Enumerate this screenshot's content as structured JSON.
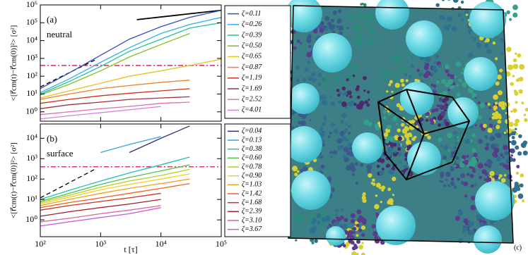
{
  "chart_data": [
    {
      "type": "line",
      "log_x": true,
      "log_y": true,
      "y_label": "<[r⃗cm(t)−r⃗cm(0)]²> [σ²]",
      "annotations": [
        "(a)",
        "neutral"
      ],
      "xlim": [
        100,
        100000
      ],
      "ylim": [
        0.3,
        1000000
      ],
      "yticks": [
        {
          "value": 1,
          "label": "10⁰"
        },
        {
          "value": 10,
          "label": "10¹"
        },
        {
          "value": 100,
          "label": "10²"
        },
        {
          "value": 1000,
          "label": "10³"
        },
        {
          "value": 10000,
          "label": "10⁴"
        },
        {
          "value": 100000,
          "label": "10⁵"
        },
        {
          "value": 1000000,
          "label": "10⁶"
        }
      ],
      "x": [
        100,
        300,
        1000,
        3000,
        10000,
        30000,
        100000
      ],
      "series": [
        {
          "name": "ζ=4.01",
          "color": "#d77fe0",
          "values": [
            0.4,
            0.6,
            0.9,
            1.3,
            2,
            null,
            null
          ]
        },
        {
          "name": "ζ=2.52",
          "color": "#e070b0",
          "values": [
            0.7,
            1,
            1.5,
            2,
            3,
            3.5,
            null
          ]
        },
        {
          "name": "ζ=1.69",
          "color": "#a03040",
          "values": [
            1.5,
            2.5,
            3.5,
            5,
            6,
            7,
            null
          ]
        },
        {
          "name": "ζ=1.19",
          "color": "#d03020",
          "values": [
            3,
            5,
            8,
            11,
            15,
            20,
            null
          ]
        },
        {
          "name": "ζ=0.87",
          "color": "#f08020",
          "values": [
            5,
            10,
            20,
            30,
            45,
            60,
            null
          ]
        },
        {
          "name": "ζ=0.65",
          "color": "#e8c020",
          "values": [
            6,
            15,
            40,
            100,
            200,
            400,
            900
          ]
        },
        {
          "name": "ζ=0.50",
          "color": "#80c020",
          "values": [
            9,
            35,
            200,
            1200,
            6000,
            25000,
            null
          ]
        },
        {
          "name": "ζ=0.39",
          "color": "#20c0a0",
          "values": [
            10,
            50,
            350,
            2500,
            12000,
            50000,
            100000
          ]
        },
        {
          "name": "ζ=0.26",
          "color": "#30b0f0",
          "values": [
            12,
            70,
            600,
            4000,
            25000,
            80000,
            200000
          ]
        },
        {
          "name": "ζ=0.11",
          "color": "#3050c0",
          "values": [
            20,
            150,
            1500,
            12000,
            60000,
            200000,
            500000
          ]
        }
      ],
      "guides": [
        {
          "x": [
            4000,
            100000
          ],
          "y": [
            150000,
            500000
          ],
          "color": "#000000",
          "style": "solid"
        },
        {
          "x": [
            100,
            800
          ],
          "y": [
            25,
            800
          ],
          "color": "#000000",
          "style": "dashed"
        },
        {
          "x": [
            100,
            100000
          ],
          "y": [
            400,
            400
          ],
          "color": "#dd1144",
          "style": "dashdot"
        }
      ]
    },
    {
      "type": "line",
      "log_x": true,
      "log_y": true,
      "y_label": "<[r⃗cm(t)−r⃗cm(0)]²> [σ²]",
      "x_label": "t [τ]",
      "annotations": [
        "(b)",
        "surface"
      ],
      "xlim": [
        100,
        100000
      ],
      "ylim": [
        0.15,
        50000
      ],
      "xticks": [
        {
          "value": 100,
          "label": "10²"
        },
        {
          "value": 1000,
          "label": "10³"
        },
        {
          "value": 10000,
          "label": "10⁴"
        },
        {
          "value": 100000,
          "label": "10⁵"
        }
      ],
      "yticks": [
        {
          "value": 1,
          "label": "10⁰"
        },
        {
          "value": 10,
          "label": "10¹"
        },
        {
          "value": 100,
          "label": "10²"
        },
        {
          "value": 1000,
          "label": "10³"
        },
        {
          "value": 10000,
          "label": "10⁴"
        }
      ],
      "x": [
        100,
        300,
        1000,
        3000,
        10000,
        30000,
        100000
      ],
      "series": [
        {
          "name": "ζ=3.67",
          "color": "#c060e0",
          "values": [
            0.5,
            0.8,
            1.3,
            2,
            4,
            null,
            null
          ]
        },
        {
          "name": "ζ=3.10",
          "color": "#e060a0",
          "values": [
            0.8,
            1.2,
            2,
            3,
            5,
            null,
            null
          ]
        },
        {
          "name": "ζ=2.39",
          "color": "#a02030",
          "values": [
            1.5,
            2.5,
            4,
            6,
            10,
            null,
            null
          ]
        },
        {
          "name": "ζ=1.68",
          "color": "#d03020",
          "values": [
            3,
            5,
            8,
            12,
            20,
            null,
            null
          ]
        },
        {
          "name": "ζ=1.42",
          "color": "#f06020",
          "values": [
            4,
            7,
            12,
            20,
            35,
            60,
            null
          ]
        },
        {
          "name": "ζ=1.03",
          "color": "#f0a020",
          "values": [
            5,
            10,
            20,
            35,
            60,
            100,
            null
          ]
        },
        {
          "name": "ζ=0.90",
          "color": "#f0d020",
          "values": [
            6,
            13,
            30,
            55,
            100,
            180,
            null
          ]
        },
        {
          "name": "ζ=0.78",
          "color": "#b0d020",
          "values": [
            7,
            16,
            40,
            80,
            150,
            300,
            null
          ]
        },
        {
          "name": "ζ=0.60",
          "color": "#50c050",
          "values": [
            8,
            20,
            55,
            120,
            250,
            500,
            null
          ]
        },
        {
          "name": "ζ=0.38",
          "color": "#20c0b0",
          "values": [
            10,
            28,
            80,
            200,
            500,
            1200,
            null
          ]
        },
        {
          "name": "ζ=0.13",
          "color": "#30a0f0",
          "values": [
            null,
            null,
            2000,
            5000,
            12000,
            null,
            null
          ]
        },
        {
          "name": "ζ=0.04",
          "color": "#303080",
          "values": [
            null,
            null,
            null,
            2000,
            10000,
            40000,
            null
          ]
        }
      ],
      "guides": [
        {
          "x": [
            100,
            800
          ],
          "y": [
            12,
            300
          ],
          "color": "#000000",
          "style": "dashed"
        },
        {
          "x": [
            100,
            100000
          ],
          "y": [
            400,
            400
          ],
          "color": "#dd1144",
          "style": "dashdot"
        }
      ]
    }
  ],
  "panel_c": {
    "label": "(c)"
  }
}
